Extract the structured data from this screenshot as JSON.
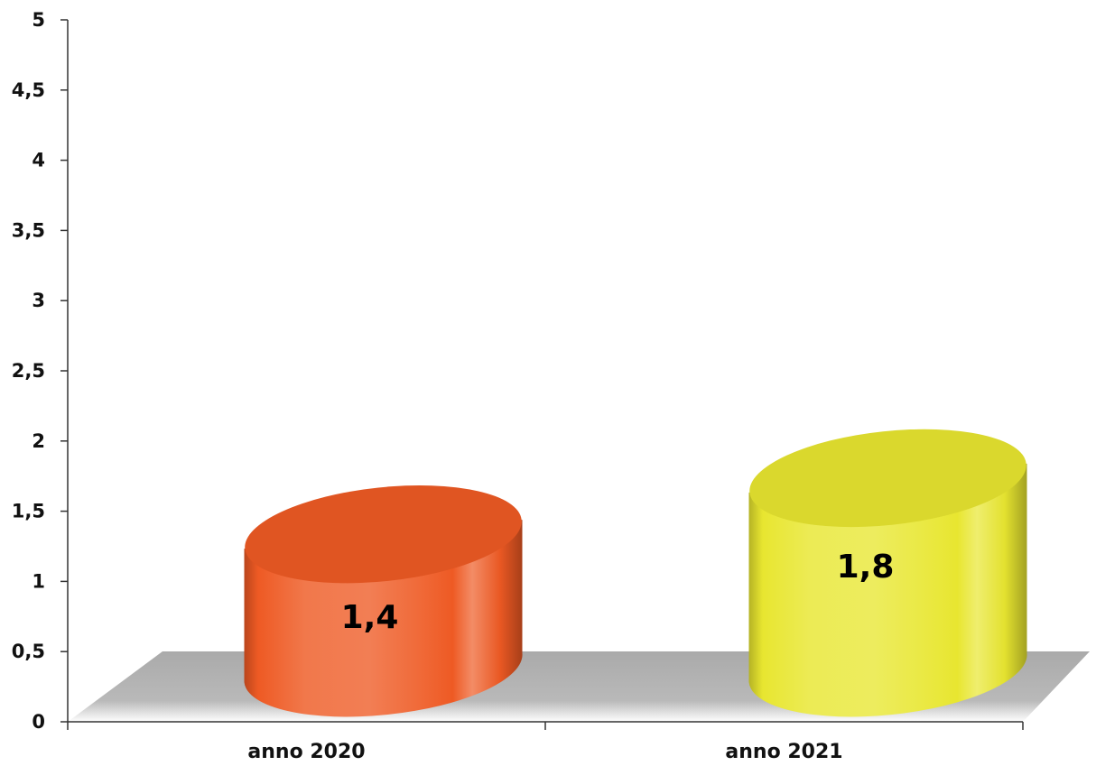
{
  "chart_data": {
    "type": "bar",
    "style": "3d-cylinder",
    "categories": [
      "anno 2020",
      "anno 2021"
    ],
    "values": [
      1.4,
      1.8
    ],
    "value_labels": [
      "1,4",
      "1,8"
    ],
    "colors": [
      "#ee5a24",
      "#e8e630"
    ],
    "ylim": [
      0,
      5
    ],
    "yticks": [
      0,
      0.5,
      1,
      1.5,
      2,
      2.5,
      3,
      3.5,
      4,
      4.5,
      5
    ],
    "ytick_labels": [
      "0",
      "0,5",
      "1",
      "1,5",
      "2",
      "2,5",
      "3",
      "3,5",
      "4",
      "4,5",
      "5"
    ],
    "grid": false,
    "floor_color": "#b9b9b9"
  }
}
